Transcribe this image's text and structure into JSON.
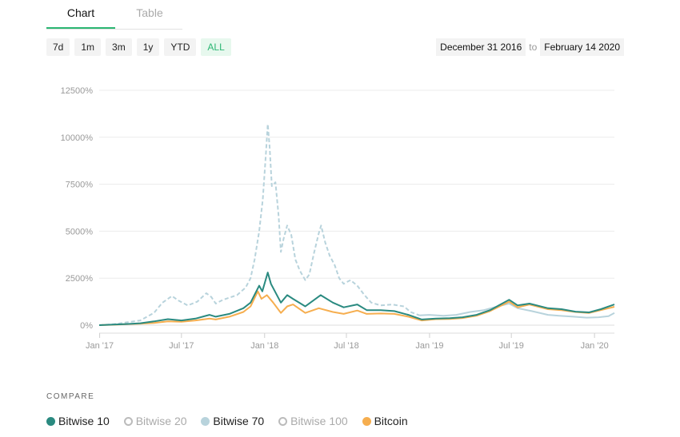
{
  "tabs": {
    "chart": "Chart",
    "table": "Table"
  },
  "ranges": [
    {
      "label": "7d",
      "active": false
    },
    {
      "label": "1m",
      "active": false
    },
    {
      "label": "3m",
      "active": false
    },
    {
      "label": "1y",
      "active": false
    },
    {
      "label": "YTD",
      "active": false
    },
    {
      "label": "ALL",
      "active": true
    }
  ],
  "date_range": {
    "from": "December 31 2016",
    "to_label": "to",
    "to": "February 14 2020"
  },
  "compare": {
    "title": "COMPARE",
    "items": [
      {
        "label": "Bitwise 10",
        "color": "#2a8a80",
        "active": true
      },
      {
        "label": "Bitwise 20",
        "color": "#bbbbbb",
        "active": false
      },
      {
        "label": "Bitwise 70",
        "color": "#b8d3dc",
        "active": true
      },
      {
        "label": "Bitwise 100",
        "color": "#bbbbbb",
        "active": false
      },
      {
        "label": "Bitcoin",
        "color": "#f6ae4f",
        "active": true
      }
    ]
  },
  "chart_data": {
    "type": "line",
    "x_range": [
      "2016-12-31",
      "2020-02-14"
    ],
    "ylim": [
      0,
      12500
    ],
    "yticks": [
      0,
      2500,
      5000,
      7500,
      10000,
      12500
    ],
    "ytick_labels": [
      "0%",
      "2500%",
      "5000%",
      "7500%",
      "10000%",
      "12500%"
    ],
    "xticks": [
      "2017-01-01",
      "2017-07-01",
      "2018-01-01",
      "2018-07-01",
      "2019-01-01",
      "2019-07-01",
      "2020-01-01"
    ],
    "xtick_labels": [
      "Jan '17",
      "Jul '17",
      "Jan '18",
      "Jul '18",
      "Jan '19",
      "Jul '19",
      "Jan '20"
    ],
    "grid": true,
    "series": [
      {
        "name": "Bitwise 70",
        "color": "#b8d3dc",
        "dashed_until": "2018-12-15",
        "points": [
          [
            "2016-12-31",
            0
          ],
          [
            "2017-02-01",
            50
          ],
          [
            "2017-03-01",
            150
          ],
          [
            "2017-04-01",
            250
          ],
          [
            "2017-05-01",
            650
          ],
          [
            "2017-05-20",
            1200
          ],
          [
            "2017-06-10",
            1550
          ],
          [
            "2017-06-25",
            1300
          ],
          [
            "2017-07-15",
            1050
          ],
          [
            "2017-08-05",
            1250
          ],
          [
            "2017-08-25",
            1700
          ],
          [
            "2017-09-05",
            1500
          ],
          [
            "2017-09-15",
            1150
          ],
          [
            "2017-10-01",
            1350
          ],
          [
            "2017-11-01",
            1600
          ],
          [
            "2017-11-20",
            2000
          ],
          [
            "2017-12-01",
            2500
          ],
          [
            "2017-12-10",
            3500
          ],
          [
            "2017-12-20",
            5000
          ],
          [
            "2017-12-28",
            6700
          ],
          [
            "2018-01-04",
            9200
          ],
          [
            "2018-01-08",
            10700
          ],
          [
            "2018-01-12",
            9500
          ],
          [
            "2018-01-17",
            7400
          ],
          [
            "2018-01-25",
            7600
          ],
          [
            "2018-02-01",
            5800
          ],
          [
            "2018-02-06",
            3900
          ],
          [
            "2018-02-12",
            4600
          ],
          [
            "2018-02-20",
            5300
          ],
          [
            "2018-03-01",
            4800
          ],
          [
            "2018-03-10",
            3500
          ],
          [
            "2018-03-20",
            2900
          ],
          [
            "2018-04-01",
            2400
          ],
          [
            "2018-04-10",
            2700
          ],
          [
            "2018-04-20",
            3800
          ],
          [
            "2018-05-01",
            4900
          ],
          [
            "2018-05-06",
            5300
          ],
          [
            "2018-05-15",
            4400
          ],
          [
            "2018-05-25",
            3700
          ],
          [
            "2018-06-05",
            3200
          ],
          [
            "2018-06-15",
            2500
          ],
          [
            "2018-06-25",
            2200
          ],
          [
            "2018-07-10",
            2400
          ],
          [
            "2018-07-25",
            2100
          ],
          [
            "2018-08-10",
            1600
          ],
          [
            "2018-08-25",
            1200
          ],
          [
            "2018-09-15",
            1050
          ],
          [
            "2018-10-10",
            1100
          ],
          [
            "2018-11-05",
            1000
          ],
          [
            "2018-11-20",
            700
          ],
          [
            "2018-12-10",
            520
          ],
          [
            "2018-12-31",
            550
          ],
          [
            "2019-02-01",
            500
          ],
          [
            "2019-03-01",
            550
          ],
          [
            "2019-04-01",
            700
          ],
          [
            "2019-05-01",
            800
          ],
          [
            "2019-06-01",
            1000
          ],
          [
            "2019-06-26",
            1150
          ],
          [
            "2019-07-15",
            900
          ],
          [
            "2019-08-15",
            750
          ],
          [
            "2019-09-20",
            550
          ],
          [
            "2019-10-15",
            500
          ],
          [
            "2019-11-15",
            450
          ],
          [
            "2019-12-15",
            400
          ],
          [
            "2020-01-10",
            420
          ],
          [
            "2020-02-01",
            480
          ],
          [
            "2020-02-14",
            650
          ]
        ]
      },
      {
        "name": "Bitcoin",
        "color": "#f6ae4f",
        "dashed_until": null,
        "points": [
          [
            "2016-12-31",
            0
          ],
          [
            "2017-02-01",
            20
          ],
          [
            "2017-03-01",
            50
          ],
          [
            "2017-04-01",
            80
          ],
          [
            "2017-05-01",
            120
          ],
          [
            "2017-06-01",
            200
          ],
          [
            "2017-07-01",
            180
          ],
          [
            "2017-08-01",
            250
          ],
          [
            "2017-09-01",
            350
          ],
          [
            "2017-09-15",
            300
          ],
          [
            "2017-10-15",
            450
          ],
          [
            "2017-11-15",
            700
          ],
          [
            "2017-12-01",
            1000
          ],
          [
            "2017-12-17",
            1800
          ],
          [
            "2017-12-25",
            1400
          ],
          [
            "2018-01-06",
            1600
          ],
          [
            "2018-01-20",
            1200
          ],
          [
            "2018-02-06",
            650
          ],
          [
            "2018-02-20",
            1000
          ],
          [
            "2018-03-05",
            1100
          ],
          [
            "2018-04-01",
            650
          ],
          [
            "2018-05-01",
            900
          ],
          [
            "2018-06-01",
            700
          ],
          [
            "2018-06-25",
            600
          ],
          [
            "2018-07-25",
            780
          ],
          [
            "2018-08-15",
            600
          ],
          [
            "2018-09-15",
            620
          ],
          [
            "2018-10-15",
            600
          ],
          [
            "2018-11-15",
            450
          ],
          [
            "2018-12-15",
            250
          ],
          [
            "2019-01-15",
            320
          ],
          [
            "2019-02-15",
            330
          ],
          [
            "2019-03-15",
            380
          ],
          [
            "2019-04-15",
            500
          ],
          [
            "2019-05-15",
            750
          ],
          [
            "2019-06-26",
            1250
          ],
          [
            "2019-07-15",
            950
          ],
          [
            "2019-08-10",
            1100
          ],
          [
            "2019-09-20",
            850
          ],
          [
            "2019-10-20",
            800
          ],
          [
            "2019-11-20",
            700
          ],
          [
            "2019-12-20",
            650
          ],
          [
            "2020-01-15",
            800
          ],
          [
            "2020-02-14",
            980
          ]
        ]
      },
      {
        "name": "Bitwise 10",
        "color": "#2a8a80",
        "dashed_until": null,
        "points": [
          [
            "2016-12-31",
            0
          ],
          [
            "2017-02-01",
            30
          ],
          [
            "2017-03-01",
            60
          ],
          [
            "2017-04-01",
            100
          ],
          [
            "2017-05-01",
            200
          ],
          [
            "2017-06-01",
            320
          ],
          [
            "2017-07-01",
            250
          ],
          [
            "2017-08-01",
            350
          ],
          [
            "2017-09-01",
            550
          ],
          [
            "2017-09-15",
            450
          ],
          [
            "2017-10-15",
            600
          ],
          [
            "2017-11-15",
            900
          ],
          [
            "2017-12-01",
            1200
          ],
          [
            "2017-12-20",
            2100
          ],
          [
            "2017-12-27",
            1800
          ],
          [
            "2018-01-08",
            2800
          ],
          [
            "2018-01-15",
            2200
          ],
          [
            "2018-02-06",
            1200
          ],
          [
            "2018-02-20",
            1600
          ],
          [
            "2018-03-05",
            1400
          ],
          [
            "2018-04-01",
            1000
          ],
          [
            "2018-05-05",
            1600
          ],
          [
            "2018-06-01",
            1200
          ],
          [
            "2018-06-25",
            950
          ],
          [
            "2018-07-25",
            1100
          ],
          [
            "2018-08-15",
            800
          ],
          [
            "2018-09-15",
            800
          ],
          [
            "2018-10-15",
            750
          ],
          [
            "2018-11-15",
            550
          ],
          [
            "2018-12-15",
            300
          ],
          [
            "2019-01-15",
            350
          ],
          [
            "2019-02-15",
            370
          ],
          [
            "2019-03-15",
            420
          ],
          [
            "2019-04-15",
            550
          ],
          [
            "2019-05-15",
            800
          ],
          [
            "2019-06-26",
            1350
          ],
          [
            "2019-07-15",
            1050
          ],
          [
            "2019-08-10",
            1150
          ],
          [
            "2019-09-20",
            900
          ],
          [
            "2019-10-20",
            850
          ],
          [
            "2019-11-20",
            720
          ],
          [
            "2019-12-20",
            680
          ],
          [
            "2020-01-15",
            850
          ],
          [
            "2020-02-14",
            1100
          ]
        ]
      }
    ]
  }
}
